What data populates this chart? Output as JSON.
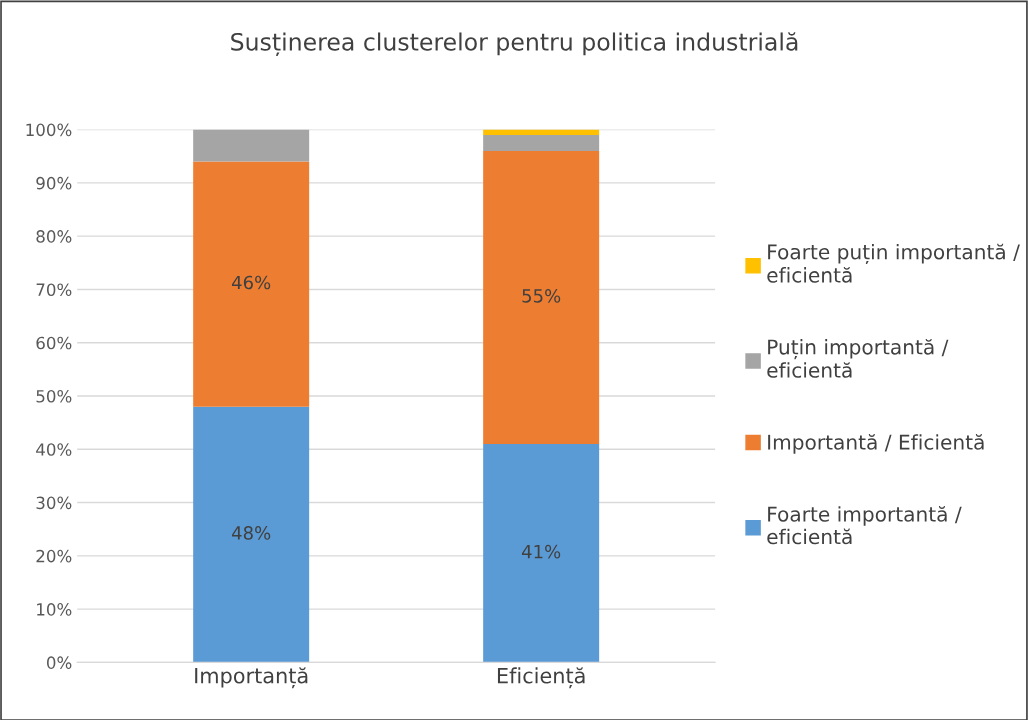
{
  "chart_data": {
    "type": "bar",
    "title": "Susținerea clusterelor pentru politica industrială",
    "stacked": true,
    "categories": [
      "Importanță",
      "Eficiență"
    ],
    "series": [
      {
        "name": "Foarte importantă / eficientă",
        "color": "#5b9bd5",
        "values": [
          48,
          41
        ],
        "value_labels": [
          "48%",
          "41%"
        ]
      },
      {
        "name": "Importantă / Eficientă",
        "color": "#ed7d31",
        "values": [
          46,
          55
        ],
        "value_labels": [
          "46%",
          "55%"
        ]
      },
      {
        "name": "Puțin importantă / eficientă",
        "color": "#a5a5a5",
        "values": [
          6,
          3
        ]
      },
      {
        "name": "Foarte puțin importantă / eficientă",
        "color": "#ffc000",
        "values": [
          0,
          1
        ]
      }
    ],
    "ylim": [
      0,
      100
    ],
    "yticks": [
      {
        "value": 0,
        "label": "0%"
      },
      {
        "value": 10,
        "label": "10%"
      },
      {
        "value": 20,
        "label": "20%"
      },
      {
        "value": 30,
        "label": "30%"
      },
      {
        "value": 40,
        "label": "40%"
      },
      {
        "value": 50,
        "label": "50%"
      },
      {
        "value": 60,
        "label": "60%"
      },
      {
        "value": 70,
        "label": "70%"
      },
      {
        "value": 80,
        "label": "80%"
      },
      {
        "value": 90,
        "label": "90%"
      },
      {
        "value": 100,
        "label": "100%"
      }
    ],
    "grid": "y",
    "legend": "right"
  }
}
